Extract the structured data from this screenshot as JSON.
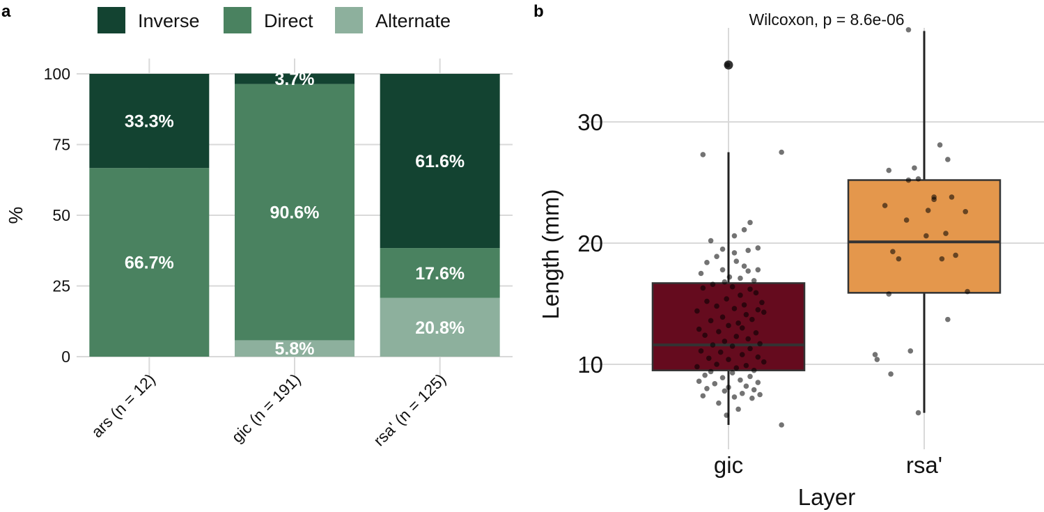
{
  "chart_data": [
    {
      "panel": "a",
      "type": "bar",
      "stacked": true,
      "ylabel": "%",
      "xlabel": "",
      "ylim": [
        0,
        100
      ],
      "yticks": [
        0,
        25,
        50,
        75,
        100
      ],
      "categories": [
        "ars (n = 12)",
        "gic (n = 191)",
        "rsa' (n = 125)"
      ],
      "series": [
        {
          "name": "Alternate",
          "color": "#8db09d",
          "values": [
            0.0,
            5.8,
            20.8
          ],
          "labels": [
            "",
            "5.8%",
            "20.8%"
          ]
        },
        {
          "name": "Direct",
          "color": "#4a8260",
          "values": [
            66.7,
            90.6,
            17.6
          ],
          "labels": [
            "66.7%",
            "90.6%",
            "17.6%"
          ]
        },
        {
          "name": "Inverse",
          "color": "#134331",
          "values": [
            33.3,
            3.7,
            61.6
          ],
          "labels": [
            "33.3%",
            "3.7%",
            "61.6%"
          ]
        }
      ],
      "legend": {
        "position": "top",
        "entries": [
          {
            "label": "Inverse",
            "color": "#134331"
          },
          {
            "label": "Direct",
            "color": "#4a8260"
          },
          {
            "label": "Alternate",
            "color": "#8db09d"
          }
        ]
      }
    },
    {
      "panel": "b",
      "type": "box",
      "title": "Wilcoxon, p = 8.6e-06",
      "xlabel": "Layer",
      "ylabel": "Length (mm)",
      "ylim": [
        4,
        38
      ],
      "yticks": [
        10,
        20,
        30
      ],
      "categories": [
        "gic",
        "rsa'"
      ],
      "boxes": [
        {
          "name": "gic",
          "color": "#650b1e",
          "q1": 9.5,
          "median": 11.6,
          "q3": 16.7,
          "whisker_low": 5.0,
          "whisker_high": 27.5,
          "outliers": [
            34.7
          ],
          "points": [
            [
              -0.005,
              34.7
            ],
            [
              0.27,
              27.5
            ],
            [
              -0.13,
              27.3
            ],
            [
              0.11,
              21.7
            ],
            [
              0.08,
              21.1
            ],
            [
              0.03,
              20.6
            ],
            [
              -0.09,
              20.2
            ],
            [
              -0.03,
              19.5
            ],
            [
              0.1,
              19.4
            ],
            [
              0.15,
              19.6
            ],
            [
              0.03,
              19.2
            ],
            [
              -0.06,
              18.9
            ],
            [
              0.04,
              18.5
            ],
            [
              -0.11,
              18.4
            ],
            [
              0.08,
              18.1
            ],
            [
              -0.03,
              17.8
            ],
            [
              0.1,
              17.7
            ],
            [
              0.15,
              17.8
            ],
            [
              -0.14,
              17.5
            ],
            [
              0.005,
              17.2
            ],
            [
              0.06,
              17.1
            ],
            [
              0.13,
              16.9
            ],
            [
              -0.02,
              16.8
            ],
            [
              -0.08,
              16.6
            ],
            [
              0.02,
              16.4
            ],
            [
              0.11,
              16.2
            ],
            [
              -0.13,
              16.3
            ],
            [
              0.14,
              15.9
            ],
            [
              0.06,
              15.7
            ],
            [
              -0.01,
              15.4
            ],
            [
              -0.11,
              15.2
            ],
            [
              0.17,
              15.1
            ],
            [
              0.08,
              14.9
            ],
            [
              -0.06,
              14.8
            ],
            [
              0.03,
              14.6
            ],
            [
              0.15,
              14.5
            ],
            [
              0.18,
              14.3
            ],
            [
              -0.16,
              14.4
            ],
            [
              0.09,
              14.1
            ],
            [
              -0.03,
              13.9
            ],
            [
              0.12,
              13.7
            ],
            [
              -0.09,
              13.6
            ],
            [
              0.05,
              13.4
            ],
            [
              0.0,
              13.2
            ],
            [
              0.07,
              13.0
            ],
            [
              -0.15,
              12.9
            ],
            [
              -0.05,
              12.7
            ],
            [
              0.14,
              12.6
            ],
            [
              -0.12,
              12.4
            ],
            [
              0.04,
              12.3
            ],
            [
              0.1,
              12.1
            ],
            [
              -0.02,
              11.9
            ],
            [
              0.16,
              11.7
            ],
            [
              -0.08,
              11.6
            ],
            [
              0.02,
              11.5
            ],
            [
              0.11,
              11.3
            ],
            [
              -0.14,
              11.1
            ],
            [
              -0.04,
              11.0
            ],
            [
              0.07,
              10.8
            ],
            [
              0.15,
              10.6
            ],
            [
              -0.1,
              10.5
            ],
            [
              0.0,
              10.4
            ],
            [
              0.18,
              10.2
            ],
            [
              -0.06,
              10.0
            ],
            [
              0.09,
              9.9
            ],
            [
              -0.16,
              9.8
            ],
            [
              0.04,
              9.7
            ],
            [
              0.13,
              9.5
            ],
            [
              -0.09,
              9.4
            ],
            [
              0.02,
              9.3
            ],
            [
              -0.12,
              9.1
            ],
            [
              0.11,
              9.0
            ],
            [
              -0.03,
              8.9
            ],
            [
              0.06,
              8.7
            ],
            [
              -0.15,
              8.6
            ],
            [
              0.15,
              8.5
            ],
            [
              -0.07,
              8.4
            ],
            [
              0.09,
              8.2
            ],
            [
              0.0,
              8.1
            ],
            [
              -0.11,
              8.0
            ],
            [
              0.13,
              7.9
            ],
            [
              -0.02,
              7.8
            ],
            [
              0.07,
              7.6
            ],
            [
              0.16,
              7.5
            ],
            [
              -0.13,
              7.4
            ],
            [
              0.03,
              7.3
            ],
            [
              0.12,
              7.2
            ],
            [
              -0.05,
              6.8
            ],
            [
              0.05,
              6.3
            ],
            [
              -0.01,
              5.8
            ],
            [
              0.27,
              5.0
            ]
          ]
        },
        {
          "name": "rsa'",
          "color": "#e4974c",
          "q1": 15.9,
          "median": 20.1,
          "q3": 25.2,
          "whisker_low": 6.0,
          "whisker_high": 37.5,
          "outliers": [],
          "points": [
            [
              -0.08,
              37.6
            ],
            [
              0.08,
              28.1
            ],
            [
              0.12,
              26.9
            ],
            [
              -0.18,
              26.0
            ],
            [
              -0.05,
              26.2
            ],
            [
              -0.03,
              25.3
            ],
            [
              -0.08,
              25.2
            ],
            [
              0.05,
              23.8
            ],
            [
              -0.2,
              23.1
            ],
            [
              0.14,
              23.8
            ],
            [
              0.05,
              23.6
            ],
            [
              0.02,
              22.7
            ],
            [
              0.21,
              22.6
            ],
            [
              -0.09,
              21.9
            ],
            [
              0.11,
              20.8
            ],
            [
              0.01,
              20.6
            ],
            [
              0.16,
              19.0
            ],
            [
              -0.16,
              19.3
            ],
            [
              -0.13,
              18.7
            ],
            [
              0.09,
              18.7
            ],
            [
              -0.18,
              15.8
            ],
            [
              0.22,
              16.0
            ],
            [
              0.12,
              13.7
            ],
            [
              -0.07,
              11.1
            ],
            [
              -0.25,
              10.8
            ],
            [
              -0.24,
              10.4
            ],
            [
              -0.17,
              9.2
            ],
            [
              -0.03,
              6.0
            ]
          ]
        }
      ]
    }
  ],
  "panels": {
    "a": "a",
    "b": "b"
  }
}
